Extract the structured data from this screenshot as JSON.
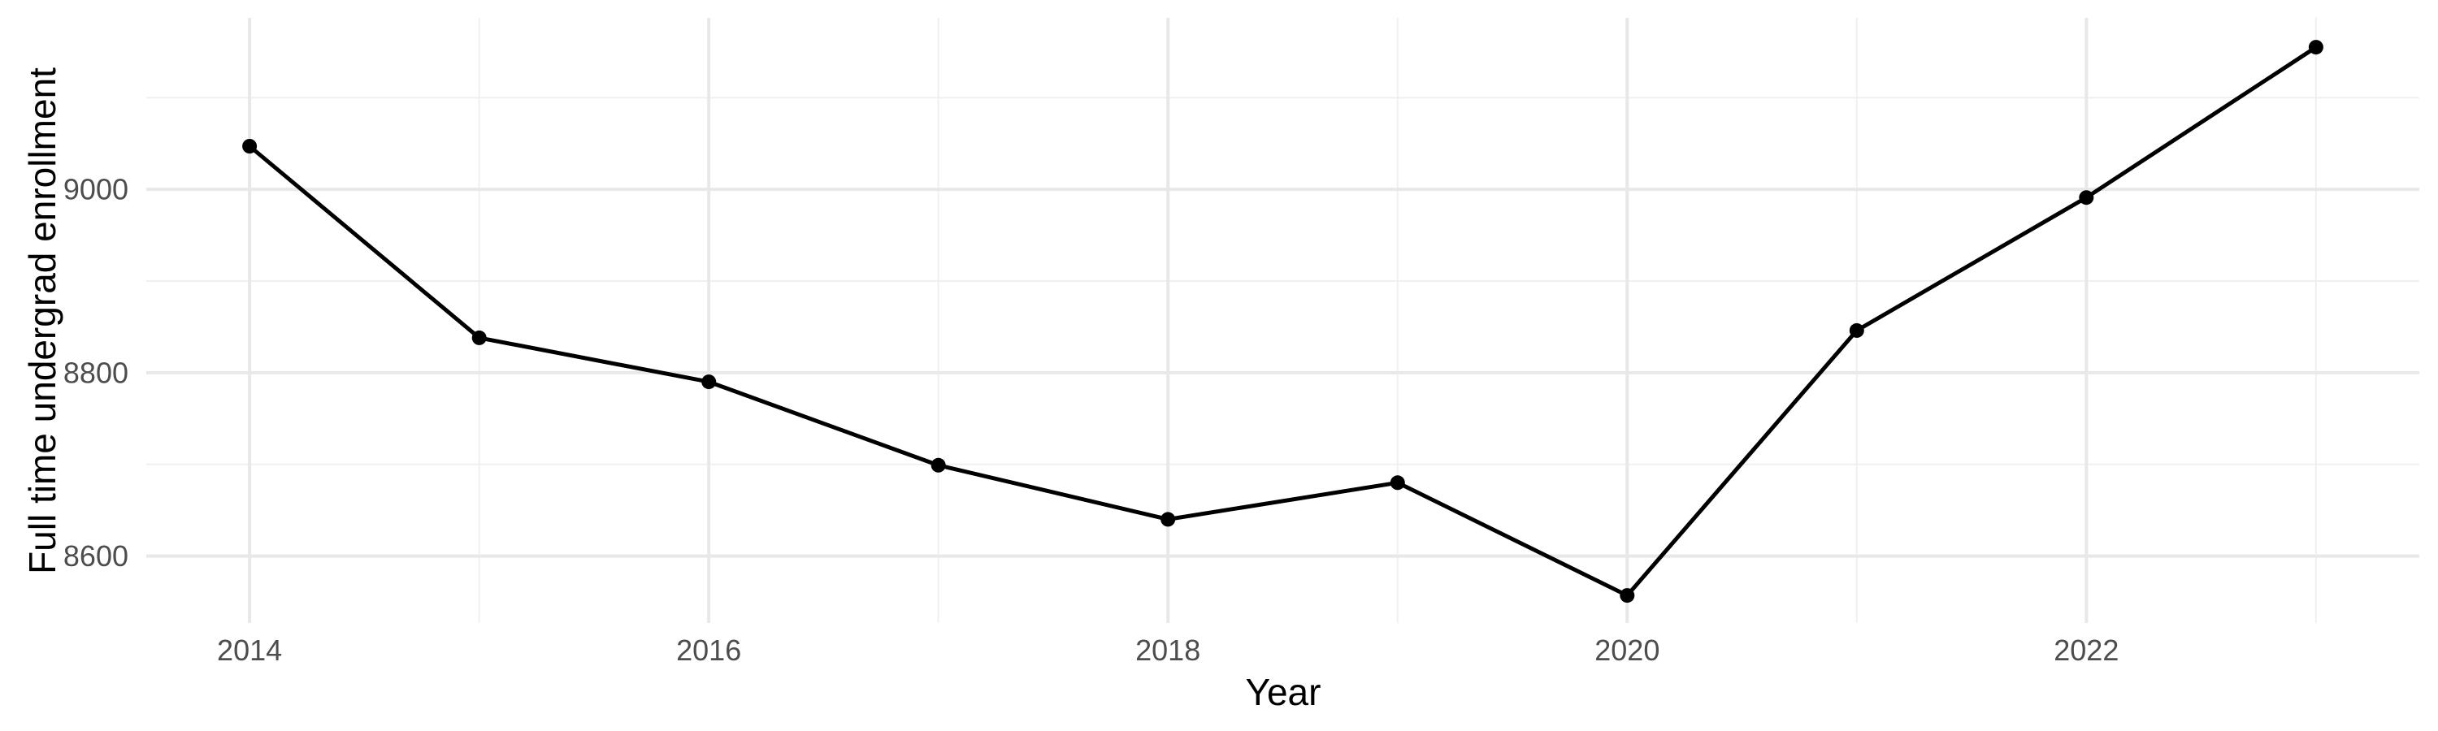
{
  "chart_data": {
    "type": "line",
    "title": "",
    "xlabel": "Year",
    "ylabel": "Full time undergrad enrollment",
    "x": [
      2014,
      2015,
      2016,
      2017,
      2018,
      2019,
      2020,
      2021,
      2022,
      2023
    ],
    "series": [
      {
        "name": "Full time undergrad enrollment",
        "values": [
          9047,
          8838,
          8790,
          8699,
          8640,
          8680,
          8557,
          8846,
          8991,
          9155
        ]
      }
    ],
    "x_ticks": {
      "values": [
        2014,
        2016,
        2018,
        2020,
        2022
      ],
      "labels": [
        "2014",
        "2016",
        "2018",
        "2020",
        "2022"
      ]
    },
    "x_minor_breaks": [
      2015,
      2017,
      2019,
      2021,
      2023
    ],
    "y_ticks": {
      "values": [
        8600,
        8800,
        9000
      ],
      "labels": [
        "8600",
        "8800",
        "9000"
      ]
    },
    "y_minor_breaks": [
      8700,
      8900,
      9100
    ],
    "xlim": [
      2013.55,
      2023.45
    ],
    "ylim": [
      8527,
      9187
    ],
    "grid": "major+minor",
    "legend": "none",
    "point_marker": "filled-circle"
  },
  "colors": {
    "background": "#FFFFFF",
    "line": "#000000",
    "point": "#000000",
    "grid_major": "#E8E8E8",
    "grid_minor": "#F0F0F0",
    "tick_label": "#4D4D4D",
    "axis_title": "#000000"
  }
}
